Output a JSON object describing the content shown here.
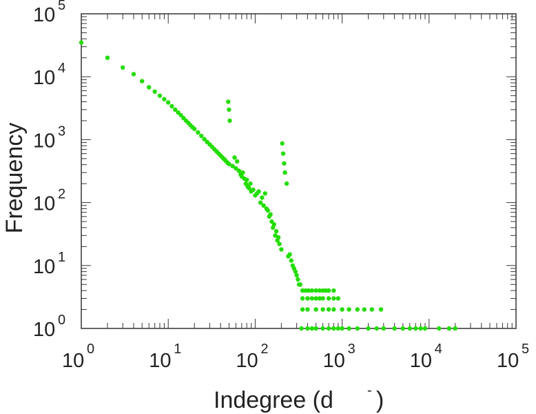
{
  "chart_data": {
    "type": "scatter",
    "title": "",
    "xlabel": "Indegree (d",
    "xlabel_sup": "-",
    "xlabel_close": ")",
    "ylabel": "Frequency",
    "x_scale": "log",
    "y_scale": "log",
    "xlim": [
      1,
      100000
    ],
    "ylim": [
      1,
      100000
    ],
    "x_ticks": [
      {
        "base": "10",
        "exp": "0",
        "value": 1
      },
      {
        "base": "10",
        "exp": "1",
        "value": 10
      },
      {
        "base": "10",
        "exp": "2",
        "value": 100
      },
      {
        "base": "10",
        "exp": "3",
        "value": 1000
      },
      {
        "base": "10",
        "exp": "4",
        "value": 10000
      },
      {
        "base": "10",
        "exp": "5",
        "value": 100000
      }
    ],
    "y_ticks": [
      {
        "base": "10",
        "exp": "0",
        "value": 1
      },
      {
        "base": "10",
        "exp": "1",
        "value": 10
      },
      {
        "base": "10",
        "exp": "2",
        "value": 100
      },
      {
        "base": "10",
        "exp": "3",
        "value": 1000
      },
      {
        "base": "10",
        "exp": "4",
        "value": 10000
      },
      {
        "base": "10",
        "exp": "5",
        "value": 100000
      }
    ],
    "grid": false,
    "marker_color": "#22dd00",
    "series": [
      {
        "points": [
          [
            1,
            35000
          ],
          [
            2,
            20000
          ],
          [
            3,
            14000
          ],
          [
            4,
            11000
          ],
          [
            5,
            8500
          ],
          [
            6,
            6800
          ],
          [
            7,
            5800
          ],
          [
            8,
            5000
          ],
          [
            9,
            4400
          ],
          [
            10,
            3900
          ],
          [
            11,
            3400
          ],
          [
            12,
            3000
          ],
          [
            13,
            2700
          ],
          [
            14,
            2450
          ],
          [
            15,
            2200
          ],
          [
            16,
            2000
          ],
          [
            17,
            1850
          ],
          [
            18,
            1700
          ],
          [
            19,
            1580
          ],
          [
            20,
            1480
          ],
          [
            22,
            1300
          ],
          [
            24,
            1150
          ],
          [
            26,
            1020
          ],
          [
            28,
            920
          ],
          [
            30,
            840
          ],
          [
            32,
            770
          ],
          [
            34,
            700
          ],
          [
            36,
            650
          ],
          [
            38,
            600
          ],
          [
            40,
            560
          ],
          [
            42,
            520
          ],
          [
            44,
            490
          ],
          [
            46,
            460
          ],
          [
            48,
            430
          ],
          [
            50,
            410
          ],
          [
            49,
            4000
          ],
          [
            50,
            3000
          ],
          [
            51,
            2000
          ],
          [
            55,
            380
          ],
          [
            58,
            520
          ],
          [
            60,
            350
          ],
          [
            62,
            450
          ],
          [
            65,
            320
          ],
          [
            68,
            280
          ],
          [
            70,
            260
          ],
          [
            72,
            300
          ],
          [
            75,
            240
          ],
          [
            78,
            200
          ],
          [
            80,
            230
          ],
          [
            82,
            180
          ],
          [
            85,
            170
          ],
          [
            88,
            200
          ],
          [
            90,
            150
          ],
          [
            95,
            160
          ],
          [
            100,
            130
          ],
          [
            105,
            140
          ],
          [
            110,
            150
          ],
          [
            115,
            100
          ],
          [
            120,
            120
          ],
          [
            125,
            90
          ],
          [
            130,
            140
          ],
          [
            135,
            80
          ],
          [
            140,
            75
          ],
          [
            145,
            60
          ],
          [
            150,
            65
          ],
          [
            155,
            50
          ],
          [
            160,
            40
          ],
          [
            165,
            45
          ],
          [
            170,
            30
          ],
          [
            175,
            35
          ],
          [
            180,
            25
          ],
          [
            185,
            28
          ],
          [
            190,
            22
          ],
          [
            200,
            18
          ],
          [
            205,
            870
          ],
          [
            210,
            600
          ],
          [
            215,
            420
          ],
          [
            220,
            300
          ],
          [
            230,
            200
          ],
          [
            240,
            14
          ],
          [
            250,
            15
          ],
          [
            260,
            12
          ],
          [
            270,
            10
          ],
          [
            280,
            9
          ],
          [
            290,
            8
          ],
          [
            300,
            7
          ],
          [
            310,
            6
          ],
          [
            320,
            5
          ],
          [
            330,
            5
          ],
          [
            350,
            4
          ],
          [
            380,
            4
          ],
          [
            410,
            4
          ],
          [
            450,
            4
          ],
          [
            500,
            4
          ],
          [
            550,
            4
          ],
          [
            600,
            4
          ],
          [
            650,
            4
          ],
          [
            700,
            4
          ],
          [
            800,
            4
          ],
          [
            350,
            3
          ],
          [
            400,
            3
          ],
          [
            450,
            3
          ],
          [
            500,
            3
          ],
          [
            550,
            3
          ],
          [
            600,
            3
          ],
          [
            700,
            3
          ],
          [
            800,
            3
          ],
          [
            900,
            3
          ],
          [
            350,
            2
          ],
          [
            400,
            2
          ],
          [
            500,
            2
          ],
          [
            600,
            2
          ],
          [
            700,
            2
          ],
          [
            800,
            2
          ],
          [
            1000,
            2
          ],
          [
            1200,
            2
          ],
          [
            1500,
            2
          ],
          [
            1800,
            2
          ],
          [
            2200,
            2
          ],
          [
            2800,
            2
          ],
          [
            340,
            1
          ],
          [
            400,
            1
          ],
          [
            450,
            1
          ],
          [
            500,
            1
          ],
          [
            600,
            1
          ],
          [
            700,
            1
          ],
          [
            800,
            1
          ],
          [
            900,
            1
          ],
          [
            1000,
            1
          ],
          [
            1200,
            1
          ],
          [
            1500,
            1
          ],
          [
            2000,
            1
          ],
          [
            2500,
            1
          ],
          [
            3000,
            1
          ],
          [
            4000,
            1
          ],
          [
            5000,
            1
          ],
          [
            6000,
            1
          ],
          [
            7000,
            1
          ],
          [
            8000,
            1
          ],
          [
            9000,
            1
          ],
          [
            13000,
            1
          ],
          [
            17000,
            1
          ],
          [
            20000,
            1
          ]
        ]
      }
    ]
  }
}
